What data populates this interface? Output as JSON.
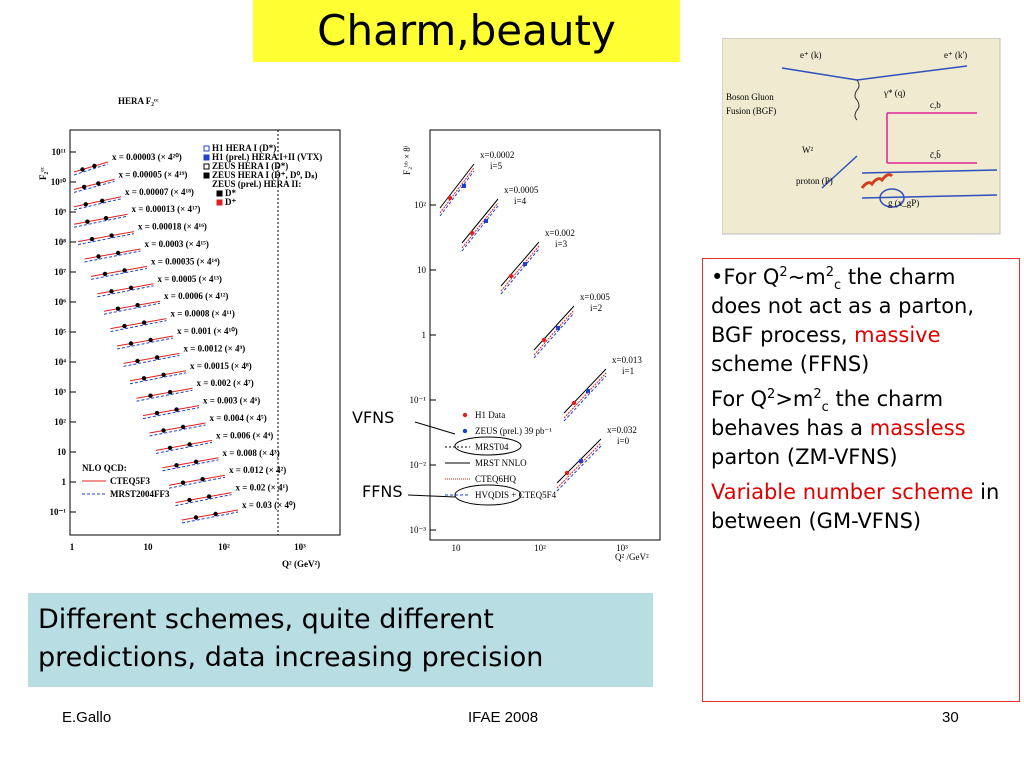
{
  "title": "Charm,beauty",
  "left_plot": {
    "title": "HERA F₂ᶜᶜ",
    "y_label": "F₂ᶜᶜ",
    "x_label": "Q² (GeV²)",
    "y_ticks": [
      "10¹¹",
      "10¹⁰",
      "10⁹",
      "10⁸",
      "10⁷",
      "10⁶",
      "10⁵",
      "10⁴",
      "10³",
      "10²",
      "10",
      "1",
      "10⁻¹"
    ],
    "x_ticks": [
      "1",
      "10",
      "10²",
      "10³"
    ],
    "bins": [
      "x = 0.00003 (× 4²⁰)",
      "x = 0.00005 (× 4¹⁹)",
      "x = 0.00007 (× 4¹⁸)",
      "x = 0.00013 (× 4¹⁷)",
      "x = 0.00018 (× 4¹⁶)",
      "x = 0.0003 (× 4¹⁵)",
      "x = 0.00035 (× 4¹⁴)",
      "x = 0.0005 (× 4¹³)",
      "x = 0.0006 (× 4¹²)",
      "x = 0.0008 (× 4¹¹)",
      "x = 0.001 (× 4¹⁰)",
      "x = 0.0012 (× 4⁹)",
      "x = 0.0015 (× 4⁸)",
      "x = 0.002 (× 4⁷)",
      "x = 0.003 (× 4⁶)",
      "x = 0.004 (× 4⁵)",
      "x = 0.006 (× 4⁴)",
      "x = 0.008 (× 4³)",
      "x = 0.012 (× 4²)",
      "x = 0.02 (× 4¹)",
      "x = 0.03 (× 4⁰)"
    ],
    "legend": [
      "H1 HERA I (D*)",
      "H1 (prel.) HERA I+II (VTX)",
      "ZEUS HERA I (D*)",
      "ZEUS HERA I (D⁺, D⁰, Dₛ)",
      "ZEUS (prel.) HERA II:",
      "D*",
      "D⁺"
    ],
    "nlo": [
      "NLO QCD:",
      "CTEQ5F3",
      "MRST2004FF3"
    ]
  },
  "right_plot": {
    "y_label": "F₂ᵇᵇ × 8ⁱ",
    "x_label": "Q² /GeV²",
    "y_ticks": [
      "10²",
      "10",
      "1",
      "10⁻¹",
      "10⁻²",
      "10⁻³"
    ],
    "x_ticks": [
      "10",
      "10²",
      "10³"
    ],
    "bins": [
      [
        "x=0.0002",
        "i=5"
      ],
      [
        "x=0.0005",
        "i=4"
      ],
      [
        "x=0.002",
        "i=3"
      ],
      [
        "x=0.005",
        "i=2"
      ],
      [
        "x=0.013",
        "i=1"
      ],
      [
        "x=0.032",
        "i=0"
      ]
    ],
    "legend": [
      "H1 Data",
      "ZEUS (prel.) 39 pb⁻¹",
      "MRST04",
      "MRST NNLO",
      "CTEQ6HQ",
      "HVQDIS + CTEQ5F4"
    ]
  },
  "arrows": [
    "VFNS",
    "FFNS"
  ],
  "diagram": {
    "labels": [
      "e⁺ (k)",
      "e⁺ (k')",
      "γ* (q)",
      "c,b",
      "c̄,b̄",
      "W²",
      "g (x_gP)",
      "proton (P)"
    ],
    "caption": [
      "Boson Gluon",
      "Fusion (BGF)"
    ]
  },
  "notes": [
    [
      "•For Q",
      "2",
      "~m",
      "2",
      "c",
      " the charm does not act as a parton, BGF process, ",
      "massive",
      " scheme (FFNS)"
    ],
    [
      "For Q",
      "2",
      ">m",
      "2",
      "c",
      "  the charm behaves has a ",
      "massless",
      " parton (ZM-VFNS)"
    ],
    [
      "Variable number scheme",
      " in between (GM-VFNS)"
    ]
  ],
  "summary": "Different schemes, quite different predictions, data increasing precision",
  "footer": {
    "author": "E.Gallo",
    "event": "IFAE 2008",
    "page": "30"
  }
}
